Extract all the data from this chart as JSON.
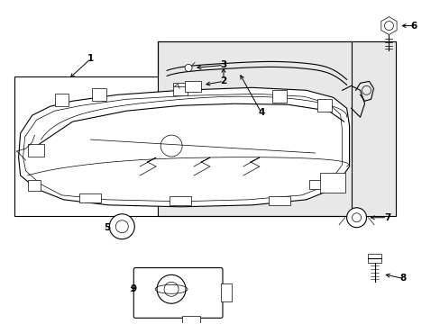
{
  "bg_color": "#ffffff",
  "line_color": "#000000",
  "gray_fill": "#e8e8e8",
  "fig_width": 4.89,
  "fig_height": 3.6,
  "dpi": 100
}
